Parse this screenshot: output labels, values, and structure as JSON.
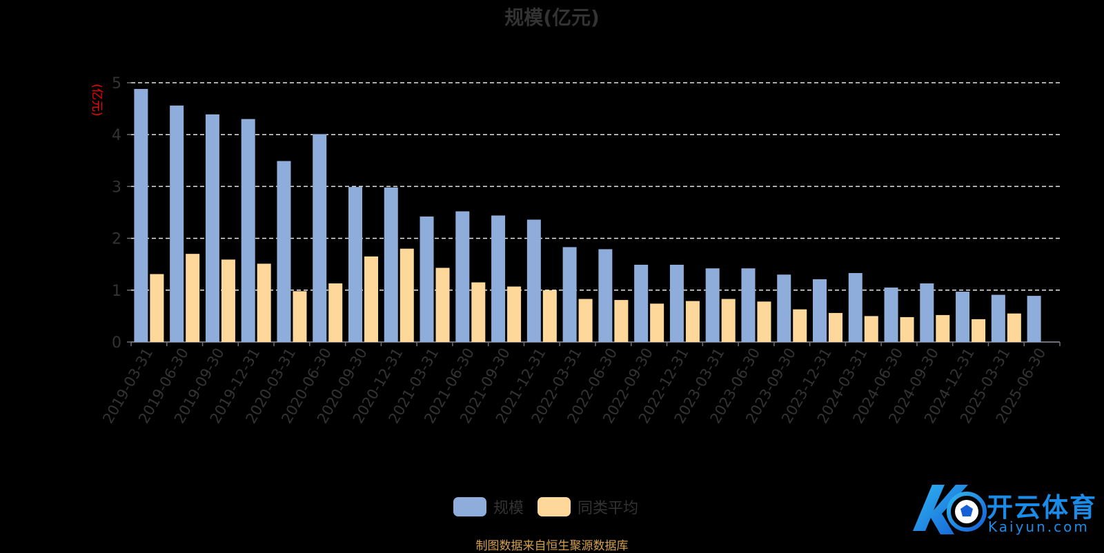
{
  "title": "规模(亿元)",
  "footer": "制图数据来自恒生聚源数据库",
  "watermark": {
    "cn": "开云体育",
    "en": "Kaiyun.com"
  },
  "colors": {
    "series1": "#8eaddb",
    "series2": "#fdd89a",
    "grid": "#e6e6e6",
    "axis": "#6e7079",
    "ylabel": "#ff0000",
    "text": "#333333",
    "footer": "#d4a04a",
    "watermark": "#1a8be6"
  },
  "chart_data": {
    "type": "bar",
    "title": "规模(亿元)",
    "ylabel": "(亿元)",
    "ylim": [
      0,
      5
    ],
    "yticks": [
      0,
      1,
      2,
      3,
      4,
      5
    ],
    "grid": true,
    "legend_position": "bottom-center",
    "categories": [
      "2019-03-31",
      "2019-06-30",
      "2019-09-30",
      "2019-12-31",
      "2020-03-31",
      "2020-06-30",
      "2020-09-30",
      "2020-12-31",
      "2021-03-31",
      "2021-06-30",
      "2021-09-30",
      "2021-12-31",
      "2022-03-31",
      "2022-06-30",
      "2022-09-30",
      "2022-12-31",
      "2023-03-31",
      "2023-06-30",
      "2023-09-30",
      "2023-12-31",
      "2024-03-31",
      "2024-06-30",
      "2024-09-30",
      "2024-12-31",
      "2025-03-31",
      "2025-06-30"
    ],
    "series": [
      {
        "name": "规模",
        "values": [
          4.88,
          4.56,
          4.39,
          4.3,
          3.49,
          4.01,
          2.99,
          2.98,
          2.42,
          2.52,
          2.44,
          2.36,
          1.83,
          1.79,
          1.49,
          1.49,
          1.42,
          1.42,
          1.3,
          1.21,
          1.33,
          1.05,
          1.13,
          0.97,
          0.91,
          0.89
        ]
      },
      {
        "name": "同类平均",
        "values": [
          1.31,
          1.7,
          1.59,
          1.51,
          0.98,
          1.13,
          1.65,
          1.8,
          1.43,
          1.15,
          1.07,
          1.0,
          0.83,
          0.81,
          0.74,
          0.79,
          0.83,
          0.78,
          0.63,
          0.56,
          0.5,
          0.48,
          0.52,
          0.44,
          0.55,
          null
        ]
      }
    ]
  }
}
